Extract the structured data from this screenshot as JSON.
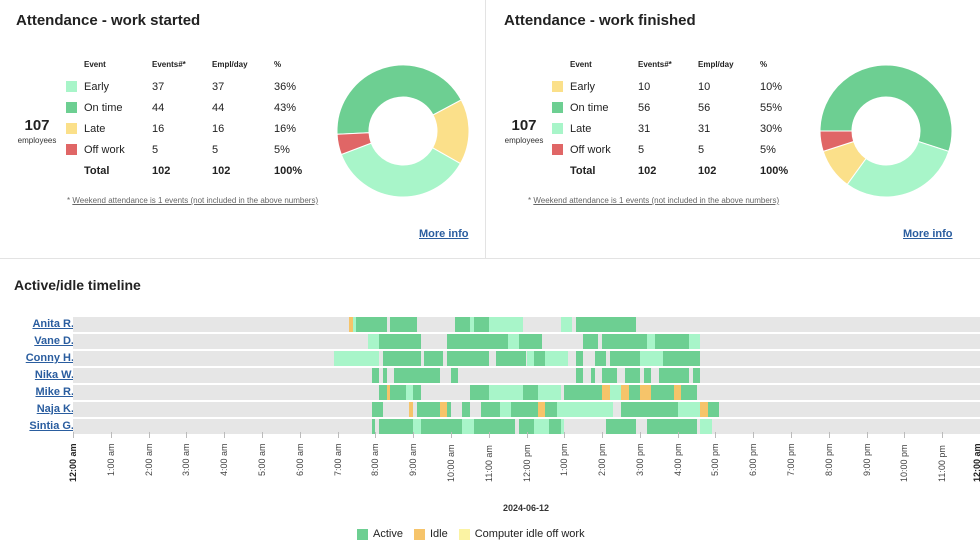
{
  "colors": {
    "early": "#a8f5c9",
    "on_time": "#6dcf92",
    "late": "#fbe08a",
    "off_work": "#e06666",
    "active": "#6dcf92",
    "idle": "#f6c46a",
    "idle_off": "#fbf3a3",
    "light": "#a8f5c9",
    "link": "#2a5d9f"
  },
  "attendance_started": {
    "title": "Attendance - work started",
    "employees_count": "107",
    "employees_label": "employees",
    "headers": {
      "event": "Event",
      "events": "Events#*",
      "empl_day": "Empl/day",
      "pct": "%"
    },
    "rows": [
      {
        "label": "Early",
        "events": "37",
        "empl": "37",
        "pct": "36%",
        "value": 36,
        "color": "#a8f5c9"
      },
      {
        "label": "On time",
        "events": "44",
        "empl": "44",
        "pct": "43%",
        "value": 43,
        "color": "#6dcf92"
      },
      {
        "label": "Late",
        "events": "16",
        "empl": "16",
        "pct": "16%",
        "value": 16,
        "color": "#fbe08a"
      },
      {
        "label": "Off work",
        "events": "5",
        "empl": "5",
        "pct": "5%",
        "value": 5,
        "color": "#e06666"
      }
    ],
    "total": {
      "label": "Total",
      "events": "102",
      "empl": "102",
      "pct": "100%"
    },
    "footnote_star": "* ",
    "footnote_text": "Weekend attendance is 1 events (not included in the above numbers)",
    "more_info": "More info"
  },
  "attendance_finished": {
    "title": "Attendance - work finished",
    "employees_count": "107",
    "employees_label": "employees",
    "headers": {
      "event": "Event",
      "events": "Events#*",
      "empl_day": "Empl/day",
      "pct": "%"
    },
    "rows": [
      {
        "label": "Early",
        "events": "10",
        "empl": "10",
        "pct": "10%",
        "value": 10,
        "color": "#fbe08a"
      },
      {
        "label": "On time",
        "events": "56",
        "empl": "56",
        "pct": "55%",
        "value": 55,
        "color": "#6dcf92"
      },
      {
        "label": "Late",
        "events": "31",
        "empl": "31",
        "pct": "30%",
        "value": 30,
        "color": "#a8f5c9"
      },
      {
        "label": "Off work",
        "events": "5",
        "empl": "5",
        "pct": "5%",
        "value": 5,
        "color": "#e06666"
      }
    ],
    "total": {
      "label": "Total",
      "events": "102",
      "empl": "102",
      "pct": "100%"
    },
    "footnote_star": "* ",
    "footnote_text": "Weekend attendance is 1 events (not included in the above numbers)",
    "more_info": "More info"
  },
  "timeline": {
    "title": "Active/idle timeline",
    "date": "2024-06-12",
    "hours": [
      "12:00 am",
      "1:00 am",
      "2:00 am",
      "3:00 am",
      "4:00 am",
      "5:00 am",
      "6:00 am",
      "7:00 am",
      "8:00 am",
      "9:00 am",
      "10:00 am",
      "11:00 am",
      "12:00 pm",
      "1:00 pm",
      "2:00 pm",
      "3:00 pm",
      "4:00 pm",
      "5:00 pm",
      "6:00 pm",
      "7:00 pm",
      "8:00 pm",
      "9:00 pm",
      "10:00 pm",
      "11:00 pm",
      "12:00 am"
    ],
    "employees": [
      {
        "name": "Anita R.",
        "segments": [
          [
            7.3,
            7.4,
            "i"
          ],
          [
            7.4,
            7.5,
            "l"
          ],
          [
            7.5,
            8.3,
            "a"
          ],
          [
            8.4,
            9.1,
            "a"
          ],
          [
            10.1,
            10.5,
            "a"
          ],
          [
            10.5,
            10.6,
            "l"
          ],
          [
            10.6,
            11.0,
            "a"
          ],
          [
            11.0,
            11.4,
            "l"
          ],
          [
            11.4,
            11.9,
            "l"
          ],
          [
            12.9,
            13.2,
            "l"
          ],
          [
            13.3,
            13.9,
            "a"
          ],
          [
            13.9,
            14.9,
            "a"
          ]
        ]
      },
      {
        "name": "Vane D.",
        "segments": [
          [
            7.8,
            8.1,
            "l"
          ],
          [
            8.1,
            9.2,
            "a"
          ],
          [
            9.9,
            11.5,
            "a"
          ],
          [
            11.5,
            11.8,
            "l"
          ],
          [
            11.8,
            12.4,
            "a"
          ],
          [
            13.5,
            13.9,
            "a"
          ],
          [
            14.0,
            15.2,
            "a"
          ],
          [
            15.2,
            15.4,
            "l"
          ],
          [
            15.4,
            16.3,
            "a"
          ],
          [
            16.3,
            16.6,
            "l"
          ]
        ]
      },
      {
        "name": "Conny H.",
        "segments": [
          [
            6.9,
            7.1,
            "l"
          ],
          [
            7.1,
            8.1,
            "l"
          ],
          [
            8.2,
            9.2,
            "a"
          ],
          [
            9.3,
            9.8,
            "a"
          ],
          [
            9.9,
            11.0,
            "a"
          ],
          [
            11.2,
            12.0,
            "a"
          ],
          [
            12.0,
            12.2,
            "l"
          ],
          [
            12.2,
            12.5,
            "a"
          ],
          [
            12.5,
            13.1,
            "l"
          ],
          [
            13.3,
            13.5,
            "a"
          ],
          [
            13.8,
            14.1,
            "a"
          ],
          [
            14.2,
            15.0,
            "a"
          ],
          [
            15.0,
            15.6,
            "l"
          ],
          [
            15.6,
            15.7,
            "a"
          ],
          [
            15.7,
            16.6,
            "a"
          ]
        ]
      },
      {
        "name": "Nika W.",
        "segments": [
          [
            7.9,
            8.1,
            "a"
          ],
          [
            8.2,
            8.3,
            "a"
          ],
          [
            8.5,
            9.7,
            "a"
          ],
          [
            10.0,
            10.2,
            "a"
          ],
          [
            13.3,
            13.5,
            "a"
          ],
          [
            13.7,
            13.8,
            "a"
          ],
          [
            14.0,
            14.4,
            "a"
          ],
          [
            14.6,
            15.0,
            "a"
          ],
          [
            15.1,
            15.3,
            "a"
          ],
          [
            15.5,
            16.3,
            "a"
          ],
          [
            16.4,
            16.6,
            "a"
          ]
        ]
      },
      {
        "name": "Mike R.",
        "segments": [
          [
            8.1,
            8.3,
            "a"
          ],
          [
            8.3,
            8.4,
            "i"
          ],
          [
            8.4,
            8.8,
            "a"
          ],
          [
            8.8,
            9.0,
            "l"
          ],
          [
            9.0,
            9.2,
            "a"
          ],
          [
            10.5,
            11.0,
            "a"
          ],
          [
            11.0,
            11.9,
            "l"
          ],
          [
            11.9,
            12.3,
            "a"
          ],
          [
            12.3,
            12.9,
            "l"
          ],
          [
            13.0,
            14.0,
            "a"
          ],
          [
            14.0,
            14.2,
            "i"
          ],
          [
            14.2,
            14.5,
            "l"
          ],
          [
            14.5,
            14.7,
            "i"
          ],
          [
            14.7,
            15.0,
            "a"
          ],
          [
            15.0,
            15.3,
            "i"
          ],
          [
            15.3,
            15.9,
            "a"
          ],
          [
            15.9,
            16.1,
            "i"
          ],
          [
            16.1,
            16.5,
            "a"
          ]
        ]
      },
      {
        "name": "Naja K.",
        "segments": [
          [
            7.9,
            8.2,
            "a"
          ],
          [
            8.9,
            9.0,
            "i"
          ],
          [
            9.1,
            9.7,
            "a"
          ],
          [
            9.7,
            9.9,
            "i"
          ],
          [
            9.9,
            10.0,
            "a"
          ],
          [
            10.3,
            10.5,
            "a"
          ],
          [
            10.8,
            11.3,
            "a"
          ],
          [
            11.3,
            11.6,
            "l"
          ],
          [
            11.6,
            12.3,
            "a"
          ],
          [
            12.3,
            12.5,
            "i"
          ],
          [
            12.5,
            12.8,
            "a"
          ],
          [
            12.8,
            13.3,
            "l"
          ],
          [
            13.3,
            14.3,
            "l"
          ],
          [
            14.5,
            15.5,
            "a"
          ],
          [
            15.5,
            16.0,
            "a"
          ],
          [
            16.0,
            16.6,
            "l"
          ],
          [
            16.6,
            16.8,
            "i"
          ],
          [
            16.8,
            17.1,
            "a"
          ]
        ]
      },
      {
        "name": "Sintia G.",
        "segments": [
          [
            7.9,
            8.0,
            "a"
          ],
          [
            8.1,
            8.4,
            "a"
          ],
          [
            8.4,
            9.0,
            "a"
          ],
          [
            9.0,
            9.2,
            "l"
          ],
          [
            9.2,
            10.3,
            "a"
          ],
          [
            10.3,
            10.6,
            "l"
          ],
          [
            10.6,
            10.9,
            "a"
          ],
          [
            10.9,
            11.7,
            "a"
          ],
          [
            11.8,
            12.2,
            "a"
          ],
          [
            12.2,
            12.6,
            "l"
          ],
          [
            12.6,
            12.9,
            "a"
          ],
          [
            12.9,
            13.0,
            "l"
          ],
          [
            14.1,
            14.9,
            "a"
          ],
          [
            15.2,
            15.4,
            "a"
          ],
          [
            15.4,
            16.0,
            "a"
          ],
          [
            16.0,
            16.5,
            "a"
          ],
          [
            16.6,
            16.9,
            "l"
          ]
        ]
      }
    ],
    "legend": [
      {
        "label": "Active",
        "color": "#6dcf92"
      },
      {
        "label": "Idle",
        "color": "#f6c46a"
      },
      {
        "label": "Computer idle off work",
        "color": "#fbf3a3"
      }
    ]
  }
}
